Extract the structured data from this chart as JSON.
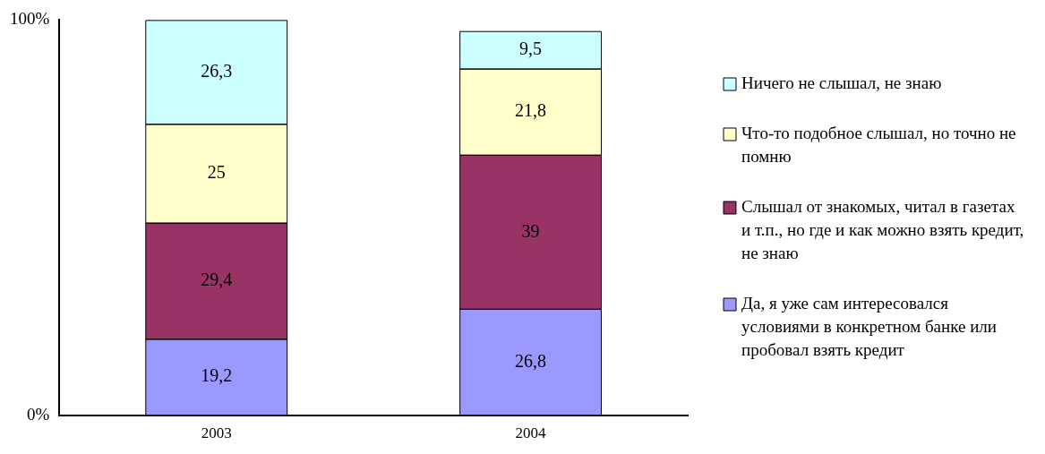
{
  "chart_data": {
    "type": "bar",
    "stacked": true,
    "categories": [
      "2003",
      "2004"
    ],
    "series": [
      {
        "name": "Да, я уже сам интересовался условиями в конкретном банке или пробовал взять кредит",
        "color": "#9999ff",
        "values": [
          19.2,
          26.8
        ],
        "value_labels": [
          "19,2",
          "26,8"
        ]
      },
      {
        "name": "Слышал от знакомых, читал в газетах и т.п., но где и как можно взять кредит, не знаю",
        "color": "#993366",
        "values": [
          29.4,
          39
        ],
        "value_labels": [
          "29,4",
          "39"
        ]
      },
      {
        "name": "Что-то подобное слышал, но точно не помню",
        "color": "#ffffcc",
        "values": [
          25,
          21.8
        ],
        "value_labels": [
          "25",
          "21,8"
        ]
      },
      {
        "name": "Ничего не слышал, не знаю",
        "color": "#ccffff",
        "values": [
          26.3,
          9.5
        ],
        "value_labels": [
          "26,3",
          "9,5"
        ]
      }
    ],
    "ylim": [
      0,
      100
    ],
    "yticks": [
      {
        "value": 0,
        "label": "0%"
      },
      {
        "value": 100,
        "label": "100%"
      }
    ],
    "grid": false,
    "legend": "right"
  }
}
